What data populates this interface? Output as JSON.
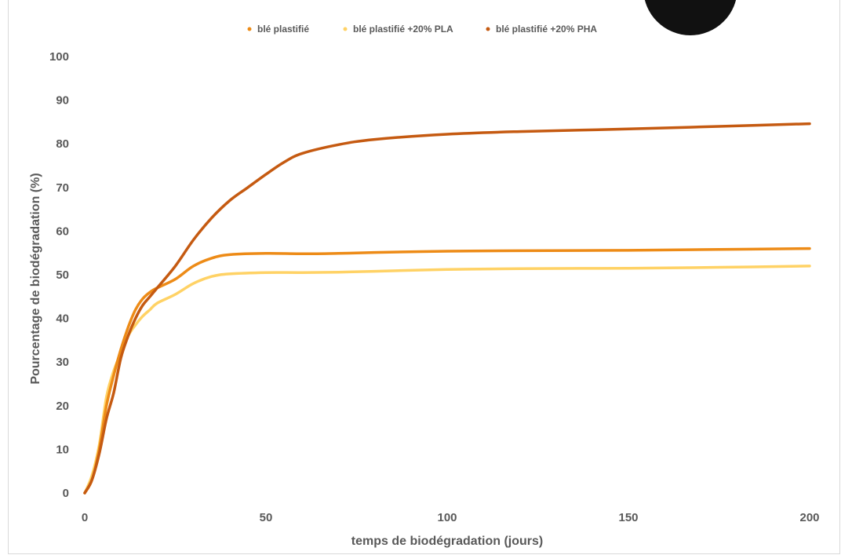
{
  "chart_data": {
    "type": "line",
    "title": "",
    "xlabel": "temps de biodégradation (jours)",
    "ylabel": "Pourcentage de biodégradation (%)",
    "xlim": [
      0,
      200
    ],
    "ylim": [
      0,
      100
    ],
    "xticks": [
      0,
      50,
      100,
      150,
      200
    ],
    "yticks": [
      0,
      10,
      20,
      30,
      40,
      50,
      60,
      70,
      80,
      90,
      100
    ],
    "grid": false,
    "legend_position": "top",
    "series": [
      {
        "name": "blé plastifié",
        "color": "#ED8B17",
        "x": [
          0,
          2,
          4,
          6,
          8,
          10,
          12,
          14,
          16,
          18,
          20,
          25,
          30,
          35,
          40,
          50,
          60,
          70,
          80,
          100,
          120,
          150,
          175,
          200
        ],
        "y": [
          0,
          3,
          10,
          20,
          27,
          33,
          38,
          42,
          44.5,
          46,
          47,
          49,
          52,
          53.8,
          54.6,
          54.9,
          54.8,
          54.9,
          55.1,
          55.4,
          55.5,
          55.6,
          55.8,
          56
        ]
      },
      {
        "name": "blé plastifié +20% PLA",
        "color": "#FFD265",
        "x": [
          0,
          2,
          4,
          6,
          8,
          10,
          12,
          14,
          16,
          18,
          20,
          25,
          30,
          35,
          40,
          50,
          60,
          70,
          80,
          100,
          120,
          150,
          175,
          200
        ],
        "y": [
          0,
          4,
          11,
          22,
          28,
          32,
          36,
          38.5,
          40.5,
          42,
          43.5,
          45.5,
          48,
          49.6,
          50.2,
          50.5,
          50.5,
          50.6,
          50.8,
          51.2,
          51.4,
          51.5,
          51.7,
          52
        ]
      },
      {
        "name": "blé plastifié +20% PHA",
        "color": "#C55A11",
        "x": [
          0,
          2,
          4,
          6,
          8,
          10,
          12,
          14,
          16,
          18,
          20,
          25,
          30,
          35,
          40,
          45,
          50,
          55,
          60,
          70,
          80,
          100,
          120,
          150,
          175,
          200
        ],
        "y": [
          0,
          3,
          9,
          17,
          23,
          31,
          36,
          40,
          43,
          45,
          47,
          52,
          58,
          63,
          67,
          70,
          73,
          75.8,
          77.8,
          79.8,
          81,
          82.2,
          82.8,
          83.4,
          84,
          84.6
        ]
      }
    ]
  }
}
